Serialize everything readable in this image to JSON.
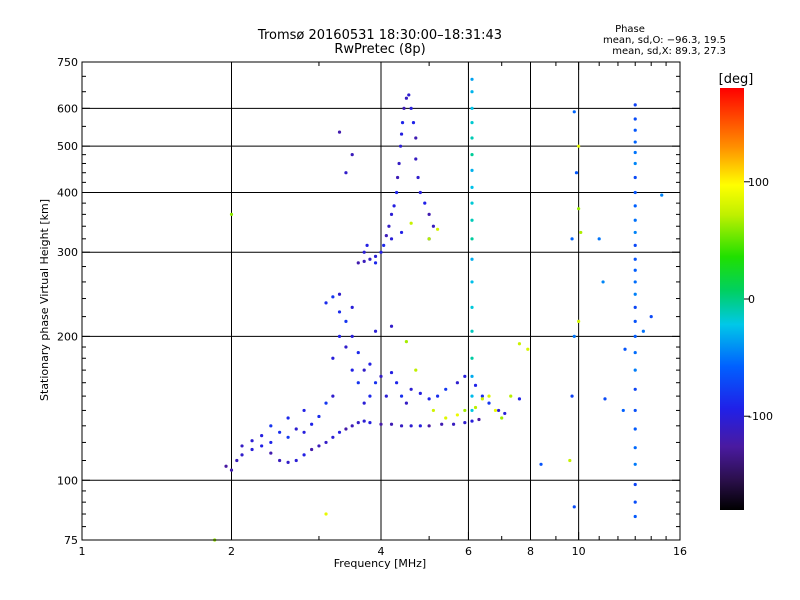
{
  "chart_data": {
    "type": "scatter",
    "title": "Tromsø 20160531 18:30:00–18:31:43",
    "subtitle": "RwPretec (8p)",
    "xlabel": "Frequency [MHz]",
    "ylabel": "Stationary phase Virtual Height [km]",
    "x_scale": "log",
    "y_scale": "log",
    "xlim": [
      1,
      16
    ],
    "ylim": [
      75,
      750
    ],
    "x_ticks": [
      1,
      2,
      4,
      6,
      8,
      10,
      16
    ],
    "x_tick_labels": [
      "1",
      "2",
      "4",
      "6",
      "8",
      "10",
      "16"
    ],
    "y_ticks": [
      75,
      100,
      200,
      300,
      400,
      500,
      600,
      750
    ],
    "y_tick_labels": [
      "75",
      "100",
      "200",
      "300",
      "400",
      "500",
      "600",
      "750"
    ],
    "grid": true,
    "phase_stats": {
      "heading": "Phase",
      "o_line": "mean, sd,O: −96.3, 19.5",
      "x_line": "mean, sd,X:  89.3, 27.3"
    },
    "colorbar": {
      "label": "[deg]",
      "range": [
        -180,
        180
      ],
      "ticks": [
        100,
        0,
        -100
      ],
      "tick_labels": [
        "100",
        "0",
        "-100"
      ]
    },
    "series": [
      {
        "group": "low layer trace",
        "points": [
          [
            1.95,
            107
          ],
          [
            2.0,
            105
          ],
          [
            2.05,
            110
          ],
          [
            2.1,
            113
          ],
          [
            2.2,
            116
          ],
          [
            2.3,
            118
          ],
          [
            2.4,
            114
          ],
          [
            2.5,
            110
          ],
          [
            2.6,
            109
          ],
          [
            2.7,
            110
          ],
          [
            2.8,
            113
          ],
          [
            2.9,
            116
          ],
          [
            3.0,
            118
          ],
          [
            3.1,
            120
          ],
          [
            3.2,
            123
          ],
          [
            3.3,
            126
          ],
          [
            3.4,
            128
          ],
          [
            3.5,
            130
          ],
          [
            3.6,
            132
          ],
          [
            3.7,
            133
          ],
          [
            3.8,
            132
          ],
          [
            4.0,
            131
          ],
          [
            4.2,
            131
          ],
          [
            4.4,
            130
          ],
          [
            4.6,
            130
          ],
          [
            4.8,
            130
          ],
          [
            5.0,
            130
          ],
          [
            5.3,
            131
          ],
          [
            5.6,
            131
          ],
          [
            5.9,
            132
          ],
          [
            6.1,
            133
          ],
          [
            6.3,
            134
          ]
        ],
        "phase": -110
      },
      {
        "group": "low layer scatter",
        "points": [
          [
            2.1,
            118
          ],
          [
            2.2,
            121
          ],
          [
            2.3,
            124
          ],
          [
            2.4,
            120
          ],
          [
            2.5,
            126
          ],
          [
            2.6,
            123
          ],
          [
            2.7,
            128
          ],
          [
            2.8,
            126
          ],
          [
            2.9,
            131
          ],
          [
            3.0,
            136
          ],
          [
            3.1,
            145
          ],
          [
            3.2,
            150
          ],
          [
            3.2,
            180
          ],
          [
            3.3,
            200
          ],
          [
            3.3,
            225
          ],
          [
            3.4,
            215
          ],
          [
            3.4,
            190
          ],
          [
            3.5,
            200
          ],
          [
            3.5,
            170
          ],
          [
            3.6,
            185
          ],
          [
            3.6,
            160
          ],
          [
            3.7,
            170
          ],
          [
            3.7,
            145
          ],
          [
            3.8,
            175
          ],
          [
            3.8,
            150
          ],
          [
            3.9,
            160
          ],
          [
            4.0,
            165
          ],
          [
            4.1,
            150
          ],
          [
            4.2,
            168
          ],
          [
            4.3,
            160
          ],
          [
            4.4,
            150
          ],
          [
            4.5,
            145
          ],
          [
            4.6,
            155
          ],
          [
            4.8,
            152
          ],
          [
            5.0,
            148
          ],
          [
            5.2,
            150
          ],
          [
            5.4,
            155
          ],
          [
            5.7,
            160
          ],
          [
            5.9,
            165
          ],
          [
            6.2,
            158
          ],
          [
            6.4,
            150
          ],
          [
            6.6,
            145
          ],
          [
            6.9,
            140
          ],
          [
            7.1,
            138
          ],
          [
            7.6,
            148
          ],
          [
            3.1,
            235
          ],
          [
            3.2,
            242
          ],
          [
            3.3,
            245
          ],
          [
            3.5,
            230
          ],
          [
            2.8,
            140
          ],
          [
            2.6,
            135
          ],
          [
            2.4,
            130
          ],
          [
            4.2,
            210
          ],
          [
            3.9,
            205
          ]
        ],
        "phase": -95
      },
      {
        "group": "upper layer trace",
        "points": [
          [
            3.6,
            285
          ],
          [
            3.7,
            287
          ],
          [
            3.8,
            290
          ],
          [
            3.9,
            294
          ],
          [
            4.0,
            300
          ],
          [
            4.05,
            310
          ],
          [
            4.1,
            325
          ],
          [
            4.15,
            340
          ],
          [
            4.2,
            360
          ],
          [
            4.25,
            375
          ],
          [
            4.3,
            400
          ],
          [
            4.32,
            430
          ],
          [
            4.35,
            460
          ],
          [
            4.38,
            500
          ],
          [
            4.4,
            530
          ],
          [
            4.42,
            560
          ],
          [
            4.45,
            600
          ],
          [
            4.5,
            630
          ],
          [
            4.55,
            640
          ],
          [
            4.6,
            600
          ],
          [
            4.65,
            560
          ],
          [
            4.7,
            520
          ],
          [
            4.7,
            470
          ],
          [
            4.75,
            430
          ],
          [
            4.8,
            400
          ],
          [
            4.9,
            380
          ],
          [
            5.0,
            360
          ],
          [
            5.1,
            340
          ],
          [
            5.0,
            320
          ],
          [
            4.2,
            320
          ],
          [
            4.4,
            330
          ],
          [
            3.3,
            535
          ],
          [
            3.5,
            480
          ],
          [
            3.4,
            440
          ],
          [
            3.7,
            300
          ],
          [
            3.75,
            310
          ],
          [
            3.9,
            285
          ]
        ],
        "phase": -105
      },
      {
        "group": "positive phase returns",
        "points": [
          [
            2.0,
            360
          ],
          [
            4.5,
            195
          ],
          [
            4.7,
            170
          ],
          [
            5.1,
            140
          ],
          [
            5.4,
            135
          ],
          [
            5.7,
            137
          ],
          [
            5.9,
            140
          ],
          [
            6.2,
            142
          ],
          [
            6.4,
            148
          ],
          [
            6.6,
            150
          ],
          [
            6.8,
            140
          ],
          [
            7.0,
            135
          ],
          [
            7.3,
            150
          ],
          [
            7.6,
            193
          ],
          [
            7.9,
            188
          ],
          [
            3.1,
            85
          ],
          [
            1.85,
            75
          ],
          [
            5.0,
            320
          ],
          [
            4.6,
            345
          ],
          [
            5.2,
            335
          ],
          [
            10.0,
            500
          ],
          [
            10.0,
            370
          ],
          [
            10.1,
            330
          ],
          [
            9.6,
            110
          ],
          [
            10.0,
            215
          ]
        ],
        "phase": 75
      },
      {
        "group": "vertical stripe near 6.1 MHz",
        "points": [
          [
            6.1,
            690
          ],
          [
            6.1,
            650
          ],
          [
            6.1,
            600
          ],
          [
            6.1,
            560
          ],
          [
            6.1,
            520
          ],
          [
            6.1,
            480
          ],
          [
            6.1,
            445
          ],
          [
            6.1,
            410
          ],
          [
            6.1,
            380
          ],
          [
            6.1,
            350
          ],
          [
            6.1,
            320
          ],
          [
            6.1,
            290
          ],
          [
            6.1,
            260
          ],
          [
            6.1,
            230
          ],
          [
            6.1,
            205
          ],
          [
            6.1,
            180
          ],
          [
            6.1,
            165
          ],
          [
            6.1,
            150
          ],
          [
            6.1,
            140
          ]
        ],
        "phase": -20
      },
      {
        "group": "vertical stripe near 13 MHz",
        "points": [
          [
            13.0,
            610
          ],
          [
            13.0,
            570
          ],
          [
            13.0,
            540
          ],
          [
            13.0,
            510
          ],
          [
            13.0,
            485
          ],
          [
            13.0,
            460
          ],
          [
            13.0,
            430
          ],
          [
            13.0,
            400
          ],
          [
            13.0,
            375
          ],
          [
            13.0,
            350
          ],
          [
            13.0,
            330
          ],
          [
            13.0,
            310
          ],
          [
            13.0,
            290
          ],
          [
            13.0,
            275
          ],
          [
            13.0,
            260
          ],
          [
            13.0,
            245
          ],
          [
            13.0,
            230
          ],
          [
            13.0,
            215
          ],
          [
            13.0,
            200
          ],
          [
            13.0,
            185
          ],
          [
            13.0,
            170
          ],
          [
            13.0,
            155
          ],
          [
            13.0,
            140
          ],
          [
            13.0,
            128
          ],
          [
            13.0,
            117
          ],
          [
            13.0,
            108
          ],
          [
            13.0,
            98
          ],
          [
            13.0,
            90
          ],
          [
            13.0,
            84
          ],
          [
            9.8,
            590
          ],
          [
            9.8,
            200
          ],
          [
            9.7,
            150
          ],
          [
            9.8,
            88
          ],
          [
            9.9,
            440
          ],
          [
            9.7,
            320
          ],
          [
            11.0,
            320
          ],
          [
            11.2,
            260
          ],
          [
            11.3,
            148
          ],
          [
            12.4,
            188
          ],
          [
            12.3,
            140
          ],
          [
            13.5,
            205
          ],
          [
            14.7,
            395
          ],
          [
            14.0,
            220
          ],
          [
            8.4,
            108
          ]
        ],
        "phase": -60
      }
    ]
  }
}
